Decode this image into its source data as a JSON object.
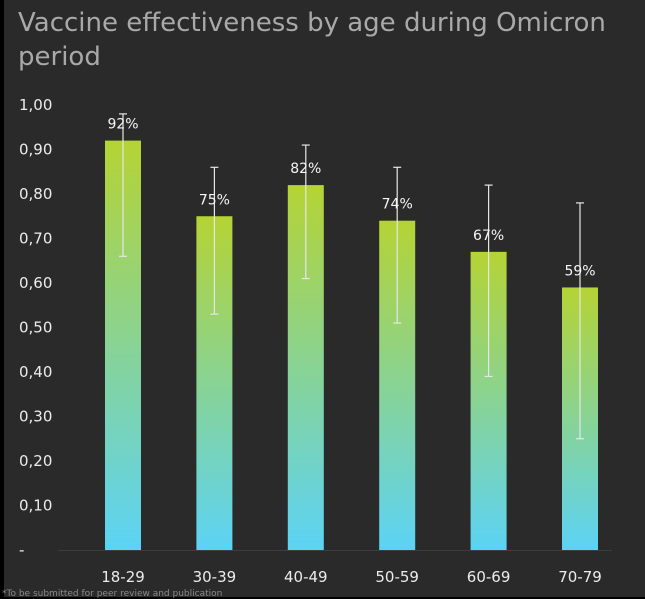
{
  "chart_data": {
    "type": "bar",
    "title": "Vaccine effectiveness by age during Omicron period",
    "categories": [
      "18-29",
      "30-39",
      "40-49",
      "50-59",
      "60-69",
      "70-79"
    ],
    "values": [
      0.92,
      0.75,
      0.82,
      0.74,
      0.67,
      0.59
    ],
    "data_labels": [
      "92%",
      "75%",
      "82%",
      "74%",
      "67%",
      "59%"
    ],
    "error_low": [
      0.66,
      0.53,
      0.61,
      0.51,
      0.39,
      0.25
    ],
    "error_high": [
      0.98,
      0.86,
      0.91,
      0.86,
      0.82,
      0.78
    ],
    "y_ticks": [
      0,
      0.1,
      0.2,
      0.3,
      0.4,
      0.5,
      0.6,
      0.7,
      0.8,
      0.9,
      1.0
    ],
    "y_tick_labels": [
      "-",
      "0,10",
      "0,20",
      "0,30",
      "0,40",
      "0,50",
      "0,60",
      "0,70",
      "0,80",
      "0,90",
      "1,00"
    ],
    "ylim": [
      0,
      1.0
    ],
    "xlabel": "",
    "ylabel": "",
    "grid": false,
    "legend": "none",
    "colors": {
      "bar_top": "#b5d334",
      "bar_bottom": "#5cd3f5",
      "error_bar": "#e6e6e6",
      "background": "#2a2a2a",
      "title": "#a9a9a9"
    }
  },
  "footnote": "*To be submitted for peer review and publication"
}
